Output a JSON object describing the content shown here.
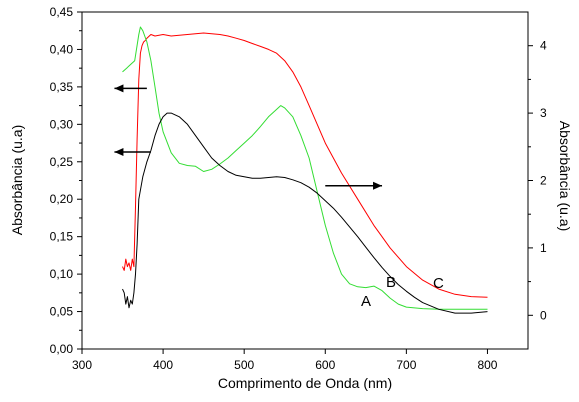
{
  "chart_data": {
    "type": "line",
    "title": "",
    "xlabel": "Comprimento de Onda (nm)",
    "ylabel": "Absorbância (u.a)",
    "ylabel_right": "Absorbância (u.a)",
    "xlim": [
      300,
      850
    ],
    "ylim": [
      0,
      0.45
    ],
    "ylim_right": [
      -0.5,
      4.5
    ],
    "xticks": [
      300,
      400,
      500,
      600,
      700,
      800
    ],
    "yticks": [
      "0,00",
      "0,05",
      "0,10",
      "0,15",
      "0,20",
      "0,25",
      "0,30",
      "0,35",
      "0,40",
      "0,45"
    ],
    "yticks_right": [
      0,
      1,
      2,
      3,
      4
    ],
    "grid": false,
    "legend": "none",
    "series": [
      {
        "label": "C",
        "axis": "left",
        "color": "#ff0000",
        "x": [
          350,
          352,
          354,
          356,
          358,
          360,
          362,
          364,
          366,
          368,
          370,
          372,
          374,
          376,
          378,
          380,
          385,
          390,
          400,
          410,
          420,
          430,
          440,
          450,
          460,
          470,
          480,
          490,
          500,
          510,
          520,
          530,
          540,
          550,
          560,
          570,
          580,
          590,
          600,
          620,
          640,
          660,
          680,
          700,
          720,
          740,
          760,
          780,
          800
        ],
        "y": [
          0.11,
          0.105,
          0.12,
          0.11,
          0.115,
          0.105,
          0.12,
          0.11,
          0.19,
          0.28,
          0.36,
          0.395,
          0.405,
          0.41,
          0.412,
          0.415,
          0.42,
          0.418,
          0.42,
          0.418,
          0.419,
          0.42,
          0.421,
          0.422,
          0.421,
          0.42,
          0.418,
          0.415,
          0.412,
          0.408,
          0.404,
          0.4,
          0.395,
          0.385,
          0.37,
          0.35,
          0.325,
          0.3,
          0.275,
          0.235,
          0.2,
          0.165,
          0.135,
          0.11,
          0.092,
          0.08,
          0.073,
          0.07,
          0.069
        ]
      },
      {
        "label": "A",
        "axis": "left",
        "color": "#33dd33",
        "x": [
          350,
          355,
          360,
          365,
          370,
          372,
          375,
          380,
          385,
          390,
          395,
          400,
          410,
          420,
          430,
          440,
          450,
          460,
          470,
          480,
          490,
          500,
          510,
          520,
          530,
          540,
          545,
          550,
          560,
          570,
          580,
          590,
          600,
          610,
          620,
          630,
          640,
          650,
          660,
          670,
          680,
          690,
          700,
          720,
          740,
          760,
          780,
          800
        ],
        "y": [
          0.37,
          0.375,
          0.38,
          0.385,
          0.42,
          0.43,
          0.425,
          0.41,
          0.385,
          0.35,
          0.315,
          0.29,
          0.262,
          0.248,
          0.245,
          0.244,
          0.237,
          0.24,
          0.247,
          0.255,
          0.265,
          0.275,
          0.285,
          0.297,
          0.31,
          0.32,
          0.325,
          0.322,
          0.31,
          0.285,
          0.255,
          0.21,
          0.165,
          0.128,
          0.1,
          0.087,
          0.083,
          0.082,
          0.084,
          0.078,
          0.068,
          0.06,
          0.056,
          0.054,
          0.053,
          0.053,
          0.053,
          0.053
        ]
      },
      {
        "label": "B",
        "axis": "left",
        "color": "#000000",
        "x": [
          350,
          352,
          354,
          356,
          358,
          360,
          362,
          364,
          366,
          368,
          370,
          375,
          380,
          385,
          390,
          395,
          400,
          405,
          410,
          420,
          430,
          440,
          450,
          460,
          470,
          480,
          490,
          500,
          510,
          520,
          530,
          540,
          550,
          560,
          570,
          580,
          590,
          600,
          610,
          620,
          630,
          640,
          650,
          660,
          670,
          680,
          690,
          700,
          710,
          720,
          740,
          760,
          780,
          800
        ],
        "y": [
          0.08,
          0.075,
          0.06,
          0.07,
          0.055,
          0.065,
          0.06,
          0.075,
          0.1,
          0.14,
          0.2,
          0.23,
          0.25,
          0.265,
          0.285,
          0.3,
          0.31,
          0.315,
          0.315,
          0.31,
          0.3,
          0.285,
          0.27,
          0.255,
          0.245,
          0.237,
          0.232,
          0.23,
          0.228,
          0.228,
          0.229,
          0.23,
          0.229,
          0.226,
          0.222,
          0.216,
          0.208,
          0.198,
          0.188,
          0.176,
          0.163,
          0.15,
          0.136,
          0.122,
          0.109,
          0.097,
          0.086,
          0.077,
          0.069,
          0.062,
          0.053,
          0.048,
          0.048,
          0.05
        ]
      }
    ],
    "annotations": [
      {
        "type": "arrow",
        "direction": "left",
        "axis": "left",
        "x_from": 380,
        "x_to": 340,
        "y": 0.348
      },
      {
        "type": "arrow",
        "direction": "left",
        "axis": "left",
        "x_from": 385,
        "x_to": 340,
        "y": 0.263
      },
      {
        "type": "arrow",
        "direction": "right",
        "axis": "left",
        "x_from": 600,
        "x_to": 670,
        "y": 0.218
      }
    ]
  }
}
